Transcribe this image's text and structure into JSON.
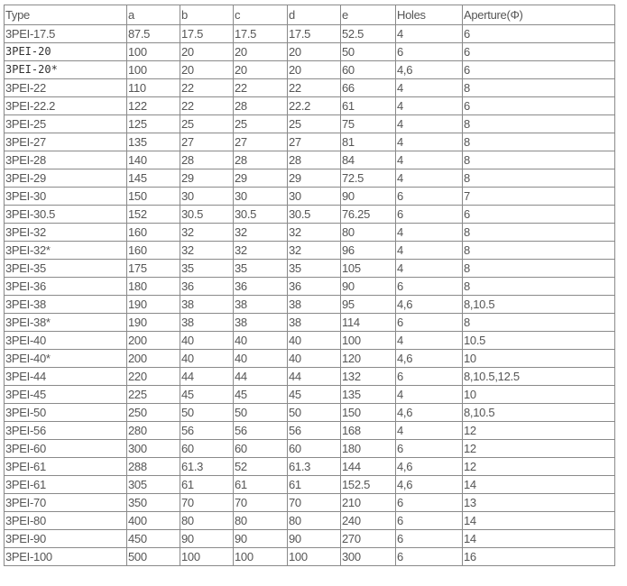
{
  "table": {
    "headers": [
      "Type",
      "a",
      "b",
      "c",
      "d",
      "e",
      "Holes",
      "Aperture(Φ)"
    ],
    "rows": [
      [
        "3PEI-17.5",
        "87.5",
        "17.5",
        "17.5",
        "17.5",
        "52.5",
        "4",
        "6"
      ],
      [
        "3PEI-20",
        "100",
        "20",
        "20",
        "20",
        "50",
        "6",
        "6"
      ],
      [
        "3PEI-20*",
        "100",
        "20",
        "20",
        "20",
        "60",
        "4,6",
        "6"
      ],
      [
        "3PEI-22",
        "110",
        "22",
        "22",
        "22",
        "66",
        "4",
        "8"
      ],
      [
        "3PEI-22.2",
        "122",
        "22",
        "28",
        "22.2",
        "61",
        "4",
        "6"
      ],
      [
        "3PEI-25",
        "125",
        "25",
        "25",
        "25",
        "75",
        "4",
        "8"
      ],
      [
        "3PEI-27",
        "135",
        "27",
        "27",
        "27",
        "81",
        "4",
        "8"
      ],
      [
        "3PEI-28",
        "140",
        "28",
        "28",
        "28",
        "84",
        "4",
        "8"
      ],
      [
        "3PEI-29",
        "145",
        "29",
        "29",
        "29",
        "72.5",
        "4",
        "8"
      ],
      [
        "3PEI-30",
        "150",
        "30",
        "30",
        "30",
        "90",
        "6",
        "7"
      ],
      [
        "3PEI-30.5",
        "152",
        "30.5",
        "30.5",
        "30.5",
        "76.25",
        "6",
        "6"
      ],
      [
        "3PEI-32",
        "160",
        "32",
        "32",
        "32",
        "80",
        "4",
        "8"
      ],
      [
        "3PEI-32*",
        "160",
        "32",
        "32",
        "32",
        "96",
        "4",
        "8"
      ],
      [
        "3PEI-35",
        "175",
        "35",
        "35",
        "35",
        "105",
        "4",
        "8"
      ],
      [
        "3PEI-36",
        "180",
        "36",
        "36",
        "36",
        "90",
        "6",
        "8"
      ],
      [
        "3PEI-38",
        "190",
        "38",
        "38",
        "38",
        "95",
        "4,6",
        "8,10.5"
      ],
      [
        "3PEI-38*",
        "190",
        "38",
        "38",
        "38",
        "114",
        "6",
        "8"
      ],
      [
        "3PEI-40",
        "200",
        "40",
        "40",
        "40",
        "100",
        "4",
        "10.5"
      ],
      [
        "3PEI-40*",
        "200",
        "40",
        "40",
        "40",
        "120",
        "4,6",
        "10"
      ],
      [
        "3PEI-44",
        "220",
        "44",
        "44",
        "44",
        "132",
        "6",
        "8,10.5,12.5"
      ],
      [
        "3PEI-45",
        "225",
        "45",
        "45",
        "45",
        "135",
        "4",
        "10"
      ],
      [
        "3PEI-50",
        "250",
        "50",
        "50",
        "50",
        "150",
        "4,6",
        "8,10.5"
      ],
      [
        "3PEI-56",
        "280",
        "56",
        "56",
        "56",
        "168",
        "4",
        "12"
      ],
      [
        "3PEI-60",
        "300",
        "60",
        "60",
        "60",
        "180",
        "6",
        "12"
      ],
      [
        "3PEI-61",
        "288",
        "61.3",
        "52",
        "61.3",
        "144",
        "4,6",
        "12"
      ],
      [
        "3PEI-61",
        "305",
        "61",
        "61",
        "61",
        "152.5",
        "4,6",
        "14"
      ],
      [
        "3PEI-70",
        "350",
        "70",
        "70",
        "70",
        "210",
        "6",
        "13"
      ],
      [
        "3PEI-80",
        "400",
        "80",
        "80",
        "80",
        "240",
        "6",
        "14"
      ],
      [
        "3PEI-90",
        "450",
        "90",
        "90",
        "90",
        "270",
        "6",
        "14"
      ],
      [
        "3PEI-100",
        "500",
        "100",
        "100",
        "100",
        "300",
        "6",
        "16"
      ]
    ]
  }
}
